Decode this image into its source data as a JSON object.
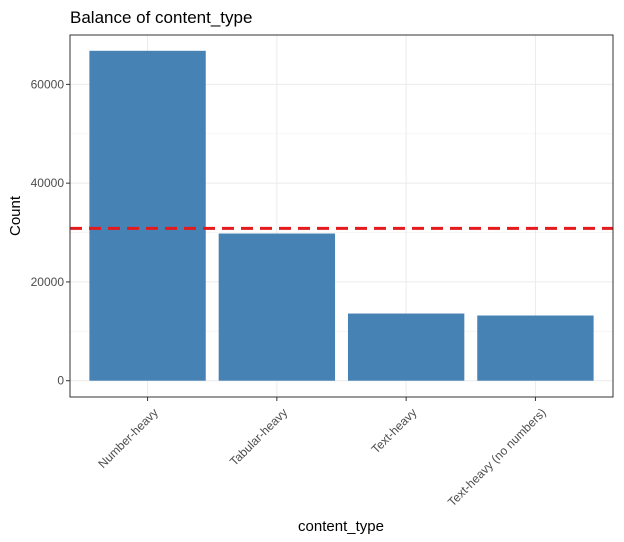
{
  "chart_data": {
    "type": "bar",
    "title": "Balance of content_type",
    "xlabel": "content_type",
    "ylabel": "Count",
    "categories": [
      "Number-heavy",
      "Tabular-heavy",
      "Text-heavy",
      "Text-heavy (no numbers)"
    ],
    "values": [
      66800,
      29800,
      13600,
      13200
    ],
    "reference_line": {
      "value": 30850,
      "style": "dashed",
      "color": "#e41a1c"
    },
    "ylim": [
      -3300,
      70000
    ],
    "yticks": [
      0,
      20000,
      40000,
      60000
    ],
    "ytick_labels": [
      "0",
      "20000",
      "40000",
      "60000"
    ],
    "bar_color": "#4682b4",
    "grid": true,
    "legend": "none"
  }
}
